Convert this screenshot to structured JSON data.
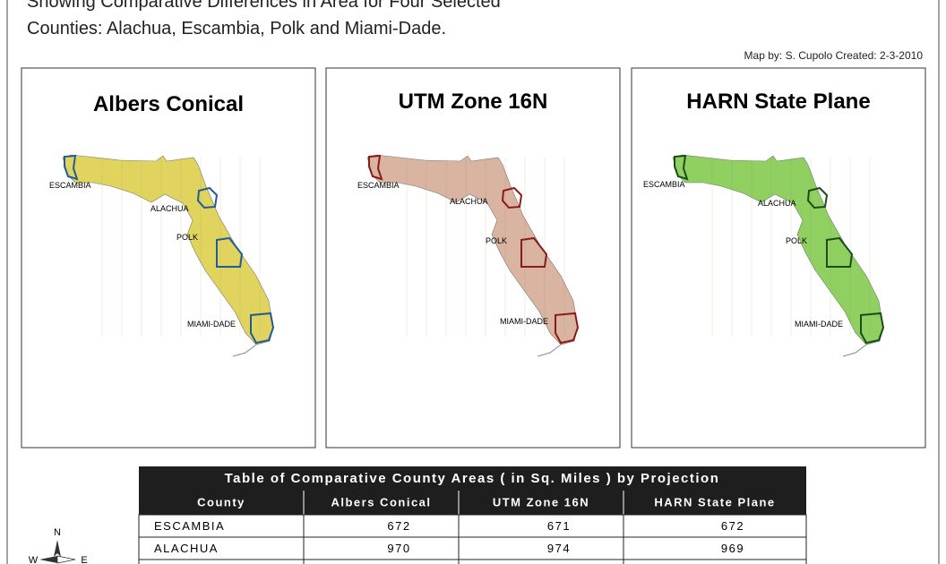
{
  "header": {
    "title_lines": [
      "Showing Comparative Differences in Area for Four Selected",
      "Counties: Alachua, Escambia, Polk and Miami-Dade."
    ],
    "credit": "Map by: S. Cupolo Created: 2-3-2010"
  },
  "maps": [
    {
      "title": "Albers Conical",
      "labels": [
        "ESCAMBIA",
        "ALACHUA",
        "POLK",
        "MIAMI-DADE"
      ]
    },
    {
      "title": "UTM Zone 16N",
      "labels": [
        "ESCAMBIA",
        "ALACHUA",
        "POLK",
        "MIAMI-DADE"
      ]
    },
    {
      "title": "HARN State Plane",
      "labels": [
        "ESCAMBIA",
        "ALACHUA",
        "POLK",
        "MIAMI-DADE"
      ]
    }
  ],
  "table": {
    "title": "Table of Comparative County Areas ( in Sq. Miles ) by Projection",
    "columns": [
      "County",
      "Albers Conical",
      "UTM Zone 16N",
      "HARN State Plane"
    ],
    "rows": [
      [
        "ESCAMBIA",
        672,
        671,
        672
      ],
      [
        "ALACHUA",
        970,
        974,
        969
      ]
    ]
  },
  "north_arrow": {
    "n": "N",
    "w": "W",
    "e": "E"
  }
}
